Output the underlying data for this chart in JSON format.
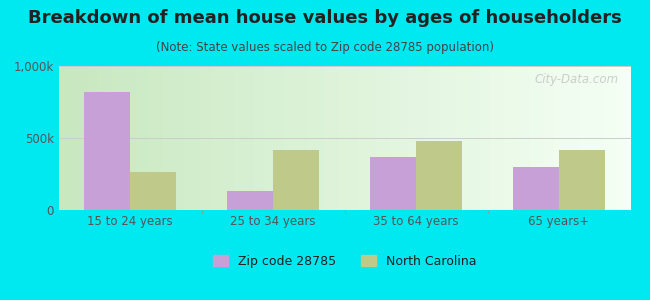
{
  "title": "Breakdown of mean house values by ages of householders",
  "subtitle": "(Note: State values scaled to Zip code 28785 population)",
  "categories": [
    "15 to 24 years",
    "25 to 34 years",
    "35 to 64 years",
    "65 years+"
  ],
  "zip_values": [
    820000,
    130000,
    365000,
    300000
  ],
  "nc_values": [
    265000,
    420000,
    480000,
    415000
  ],
  "zip_color": "#c8a0d8",
  "nc_color": "#bec98a",
  "background_color": "#00e8f0",
  "ylim": [
    0,
    1000000
  ],
  "yticks": [
    0,
    500000,
    1000000
  ],
  "ytick_labels": [
    "0",
    "500k",
    "1,000k"
  ],
  "legend_zip": "Zip code 28785",
  "legend_nc": "North Carolina",
  "bar_width": 0.32,
  "watermark": "City-Data.com",
  "title_fontsize": 13,
  "subtitle_fontsize": 8.5,
  "tick_fontsize": 8.5,
  "legend_fontsize": 9,
  "title_color": "#222222",
  "subtitle_color": "#444444",
  "tick_color": "#555555",
  "grid_color": "#cccccc",
  "plot_bg_left": "#d8f0d0",
  "plot_bg_right": "#f8fff8"
}
